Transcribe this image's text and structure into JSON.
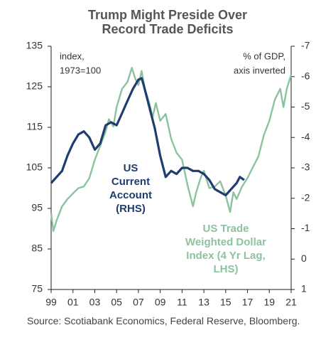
{
  "chart_data": {
    "type": "line",
    "title": [
      "Trump Might Preside Over",
      "Record Trade Deficits"
    ],
    "y_axis_note": [
      "index,",
      "1973=100"
    ],
    "y2_axis_note": [
      "% of GDP,",
      "axis inverted"
    ],
    "source": "Source: Scotiabank Economics, Federal Reserve, Bloomberg.",
    "xlim": [
      1999,
      2021
    ],
    "xticks": [
      {
        "value": 1999,
        "label": "99"
      },
      {
        "value": 2001,
        "label": "01"
      },
      {
        "value": 2003,
        "label": "03"
      },
      {
        "value": 2005,
        "label": "05"
      },
      {
        "value": 2007,
        "label": "07"
      },
      {
        "value": 2009,
        "label": "09"
      },
      {
        "value": 2011,
        "label": "11"
      },
      {
        "value": 2013,
        "label": "13"
      },
      {
        "value": 2015,
        "label": "15"
      },
      {
        "value": 2017,
        "label": "17"
      },
      {
        "value": 2019,
        "label": "19"
      },
      {
        "value": 2021,
        "label": "21"
      }
    ],
    "ylim": [
      75,
      135
    ],
    "yticks": [
      75,
      85,
      95,
      105,
      115,
      125,
      135
    ],
    "y2lim": [
      1,
      -7
    ],
    "y2ticks": [
      1,
      0,
      -1,
      -2,
      -3,
      -4,
      -5,
      -6,
      -7
    ],
    "series": [
      {
        "name": [
          "US Trade",
          "Weighted Dollar",
          "Index (4 Yr Lag,",
          "LHS)"
        ],
        "color": "#8cc29e",
        "axis": "y",
        "x": [
          1999,
          1999.2,
          1999.5,
          2000,
          2000.5,
          2001,
          2001.5,
          2002,
          2002.5,
          2003,
          2003.5,
          2004,
          2004.3,
          2004.7,
          2005,
          2005.5,
          2006,
          2006.4,
          2006.7,
          2007,
          2007.3,
          2007.6,
          2008,
          2008.3,
          2008.6,
          2009,
          2009.5,
          2010,
          2010.5,
          2011,
          2011.5,
          2012,
          2012.3,
          2012.7,
          2013,
          2013.5,
          2014,
          2014.5,
          2015,
          2015.4,
          2015.7,
          2016,
          2016.5,
          2017,
          2017.5,
          2018,
          2018.5,
          2019,
          2019.5,
          2020,
          2020.3,
          2020.6,
          2021
        ],
        "values": [
          93.8,
          89.4,
          92,
          95.5,
          97.3,
          98.7,
          100,
          100.4,
          102.5,
          107,
          110.4,
          114,
          117,
          115.2,
          120,
          124.5,
          126.2,
          129.7,
          127.1,
          125.4,
          128.9,
          124.5,
          121,
          117.5,
          121,
          116.6,
          118.3,
          112.2,
          108.7,
          107,
          100.8,
          95.5,
          99,
          102.5,
          104.3,
          100,
          100.4,
          101.7,
          98.2,
          94.1,
          99,
          97.3,
          100.4,
          102.5,
          105.2,
          107.8,
          113.1,
          116.6,
          121.8,
          124.5,
          120,
          124.5,
          128
        ]
      },
      {
        "name": [
          "US",
          "Current",
          "Account",
          "(RHS)"
        ],
        "color": "#1f3d6e",
        "axis": "y2",
        "x": [
          1999,
          2000,
          2000.5,
          2001,
          2001.5,
          2002,
          2002.5,
          2003,
          2003.5,
          2004,
          2004.5,
          2005,
          2005.5,
          2006,
          2006.5,
          2007,
          2007.3,
          2007.5,
          2008,
          2008.5,
          2009,
          2009.5,
          2010,
          2010.5,
          2011,
          2011.5,
          2012,
          2012.5,
          2013,
          2013.5,
          2014,
          2014.5,
          2015,
          2015.5,
          2016,
          2016.3,
          2016.7
        ],
        "values": [
          -2.5,
          -2.9,
          -3.4,
          -3.8,
          -4.1,
          -4.2,
          -4.0,
          -3.6,
          -3.8,
          -4.4,
          -4.5,
          -4.4,
          -4.8,
          -5.2,
          -5.6,
          -5.9,
          -5.95,
          -5.7,
          -5.0,
          -4.3,
          -3.4,
          -2.7,
          -2.9,
          -2.8,
          -3.0,
          -3.0,
          -2.9,
          -2.9,
          -2.8,
          -2.6,
          -2.3,
          -2.2,
          -2.1,
          -2.3,
          -2.5,
          -2.7,
          -2.6
        ]
      }
    ]
  }
}
